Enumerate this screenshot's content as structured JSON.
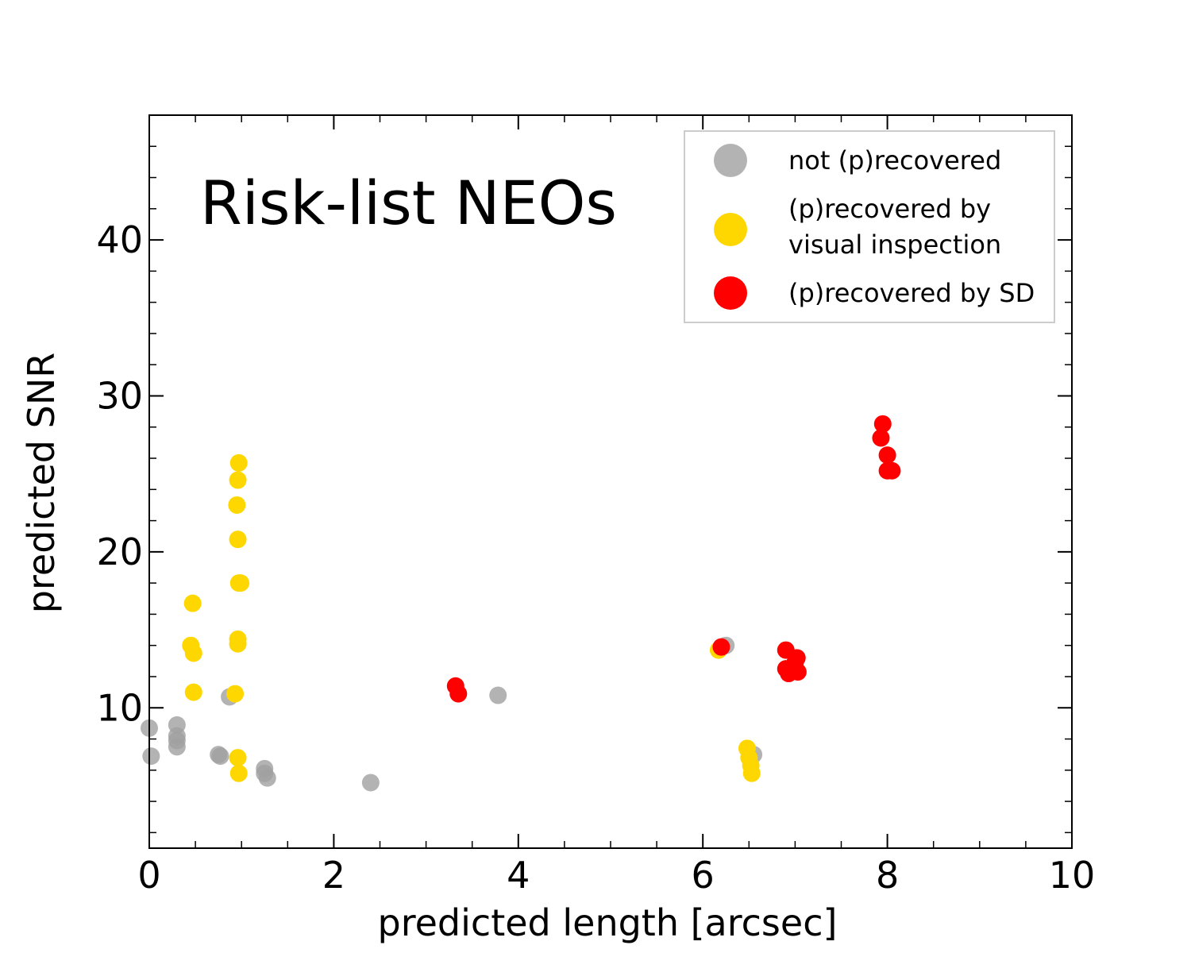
{
  "chart_data": {
    "type": "scatter",
    "title": "Risk-list NEOs",
    "xlabel": "predicted length [arcsec]",
    "ylabel": "predicted SNR",
    "xlim": [
      0,
      10
    ],
    "ylim": [
      1,
      48
    ],
    "xticks": [
      0,
      2,
      4,
      6,
      8,
      10
    ],
    "xtick_labels": [
      "0",
      "2",
      "4",
      "6",
      "8",
      "10"
    ],
    "yticks": [
      10,
      20,
      30,
      40
    ],
    "ytick_labels": [
      "10",
      "20",
      "30",
      "40"
    ],
    "grid": false,
    "legend_position": "top-right",
    "series": [
      {
        "name": "not (p)recovered",
        "color": "#a0a0a0",
        "alpha": 0.8,
        "points": [
          [
            0.0,
            8.7
          ],
          [
            0.02,
            6.9
          ],
          [
            0.3,
            8.9
          ],
          [
            0.3,
            8.2
          ],
          [
            0.3,
            7.9
          ],
          [
            0.3,
            7.5
          ],
          [
            0.75,
            7.0
          ],
          [
            0.77,
            6.9
          ],
          [
            0.87,
            10.7
          ],
          [
            1.25,
            6.1
          ],
          [
            1.25,
            5.8
          ],
          [
            1.28,
            5.5
          ],
          [
            2.4,
            5.2
          ],
          [
            3.78,
            10.8
          ],
          [
            6.25,
            14.0
          ],
          [
            6.55,
            7.0
          ]
        ]
      },
      {
        "name": "(p)recovered by\nvisual inspection",
        "label_lines": [
          "(p)recovered by",
          "visual inspection"
        ],
        "color": "#ffd700",
        "alpha": 1.0,
        "points": [
          [
            0.45,
            14.0
          ],
          [
            0.47,
            16.7
          ],
          [
            0.48,
            13.5
          ],
          [
            0.48,
            11.0
          ],
          [
            0.93,
            10.9
          ],
          [
            0.95,
            23.0
          ],
          [
            0.96,
            24.6
          ],
          [
            0.97,
            25.7
          ],
          [
            0.96,
            20.8
          ],
          [
            0.97,
            18.0
          ],
          [
            0.99,
            18.0
          ],
          [
            0.96,
            14.4
          ],
          [
            0.96,
            14.1
          ],
          [
            0.96,
            6.8
          ],
          [
            0.97,
            5.8
          ],
          [
            6.17,
            13.7
          ],
          [
            6.48,
            7.4
          ],
          [
            6.5,
            6.8
          ],
          [
            6.52,
            6.3
          ],
          [
            6.53,
            5.8
          ]
        ]
      },
      {
        "name": "(p)recovered by SD",
        "color": "#ff0000",
        "alpha": 1.0,
        "points": [
          [
            3.32,
            11.4
          ],
          [
            3.35,
            10.9
          ],
          [
            6.2,
            13.9
          ],
          [
            6.9,
            13.7
          ],
          [
            6.9,
            12.5
          ],
          [
            6.93,
            12.2
          ],
          [
            7.0,
            12.9
          ],
          [
            7.02,
            13.2
          ],
          [
            7.03,
            12.3
          ],
          [
            7.95,
            28.2
          ],
          [
            7.93,
            27.3
          ],
          [
            8.0,
            26.2
          ],
          [
            8.0,
            25.2
          ],
          [
            8.05,
            25.2
          ]
        ]
      }
    ]
  }
}
